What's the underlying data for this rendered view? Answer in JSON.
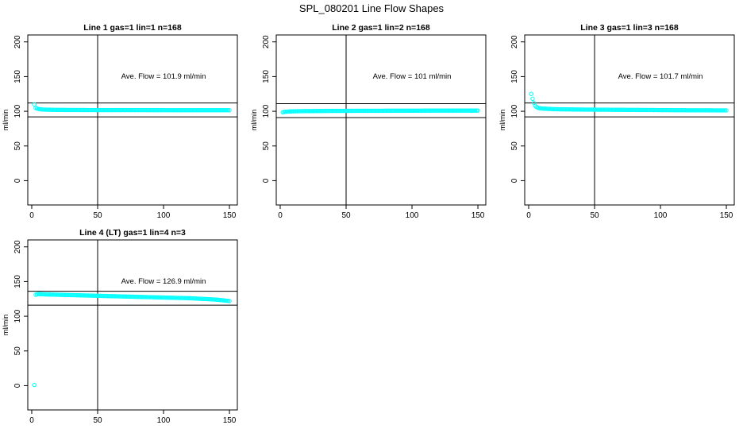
{
  "title": "SPL_080201  Line Flow Shapes",
  "chart_data": [
    {
      "type": "scatter",
      "title": "Line 1 gas=1 lin=1 n=168",
      "ylabel": "ml/min",
      "xlabel": "",
      "xlim": [
        -3,
        156
      ],
      "ylim": [
        -35,
        210
      ],
      "xticks": [
        0,
        50,
        100,
        150
      ],
      "yticks": [
        0,
        50,
        100,
        150,
        200
      ],
      "hlines": [
        112,
        92
      ],
      "vline": 50,
      "annotation": "Ave. Flow =  101.9  ml/min",
      "point_color": "#00ffff",
      "series": [
        {
          "points": [
            [
              2,
              110
            ],
            [
              3,
              105
            ],
            [
              4,
              104
            ],
            [
              5,
              103.5
            ],
            [
              6,
              103
            ],
            [
              8,
              102.6
            ],
            [
              10,
              102.4
            ],
            [
              20,
              102
            ],
            [
              40,
              101.8
            ],
            [
              80,
              101.7
            ],
            [
              120,
              101.6
            ],
            [
              150,
              101.6
            ]
          ]
        }
      ]
    },
    {
      "type": "scatter",
      "title": "Line 2 gas=1 lin=2 n=168",
      "ylabel": "ml/min",
      "xlabel": "",
      "xlim": [
        -3,
        156
      ],
      "ylim": [
        -35,
        210
      ],
      "xticks": [
        0,
        50,
        100,
        150
      ],
      "yticks": [
        0,
        50,
        100,
        150,
        200
      ],
      "hlines": [
        111,
        91
      ],
      "vline": 50,
      "annotation": "Ave. Flow =  101  ml/min",
      "point_color": "#00ffff",
      "series": [
        {
          "points": [
            [
              2,
              98.5
            ],
            [
              3,
              99
            ],
            [
              5,
              99.5
            ],
            [
              10,
              100
            ],
            [
              20,
              100.3
            ],
            [
              40,
              100.6
            ],
            [
              80,
              100.8
            ],
            [
              120,
              101
            ],
            [
              150,
              101
            ]
          ]
        }
      ]
    },
    {
      "type": "scatter",
      "title": "Line 3 gas=1 lin=3 n=168",
      "ylabel": "ml/min",
      "xlabel": "",
      "xlim": [
        -3,
        156
      ],
      "ylim": [
        -35,
        210
      ],
      "xticks": [
        0,
        50,
        100,
        150
      ],
      "yticks": [
        0,
        50,
        100,
        150,
        200
      ],
      "hlines": [
        112,
        92
      ],
      "vline": 50,
      "annotation": "Ave. Flow =  101.7  ml/min",
      "point_color": "#00ffff",
      "series": [
        {
          "points": [
            [
              2,
              125
            ],
            [
              3,
              118
            ],
            [
              4,
              112
            ],
            [
              5,
              108
            ],
            [
              6,
              106
            ],
            [
              8,
              104.5
            ],
            [
              10,
              104
            ],
            [
              20,
              103
            ],
            [
              40,
              102.5
            ],
            [
              80,
              102
            ],
            [
              120,
              101.5
            ],
            [
              150,
              101.3
            ]
          ]
        }
      ]
    },
    {
      "type": "scatter",
      "title": "Line 4 (LT) gas=1 lin=4 n=3",
      "ylabel": "ml/min",
      "xlabel": "",
      "xlim": [
        -3,
        156
      ],
      "ylim": [
        -35,
        210
      ],
      "xticks": [
        0,
        50,
        100,
        150
      ],
      "yticks": [
        0,
        50,
        100,
        150,
        200
      ],
      "hlines": [
        136,
        116
      ],
      "vline": 50,
      "annotation": "Ave. Flow =  126.9  ml/min",
      "point_color": "#00ffff",
      "series": [
        {
          "points": [
            [
              2,
              1
            ],
            [
              3,
              131
            ],
            [
              5,
              132
            ],
            [
              10,
              131.5
            ],
            [
              20,
              131
            ],
            [
              40,
              130
            ],
            [
              60,
              129
            ],
            [
              80,
              128
            ],
            [
              100,
              127
            ],
            [
              120,
              126
            ],
            [
              140,
              124
            ],
            [
              150,
              122
            ]
          ]
        }
      ]
    }
  ]
}
